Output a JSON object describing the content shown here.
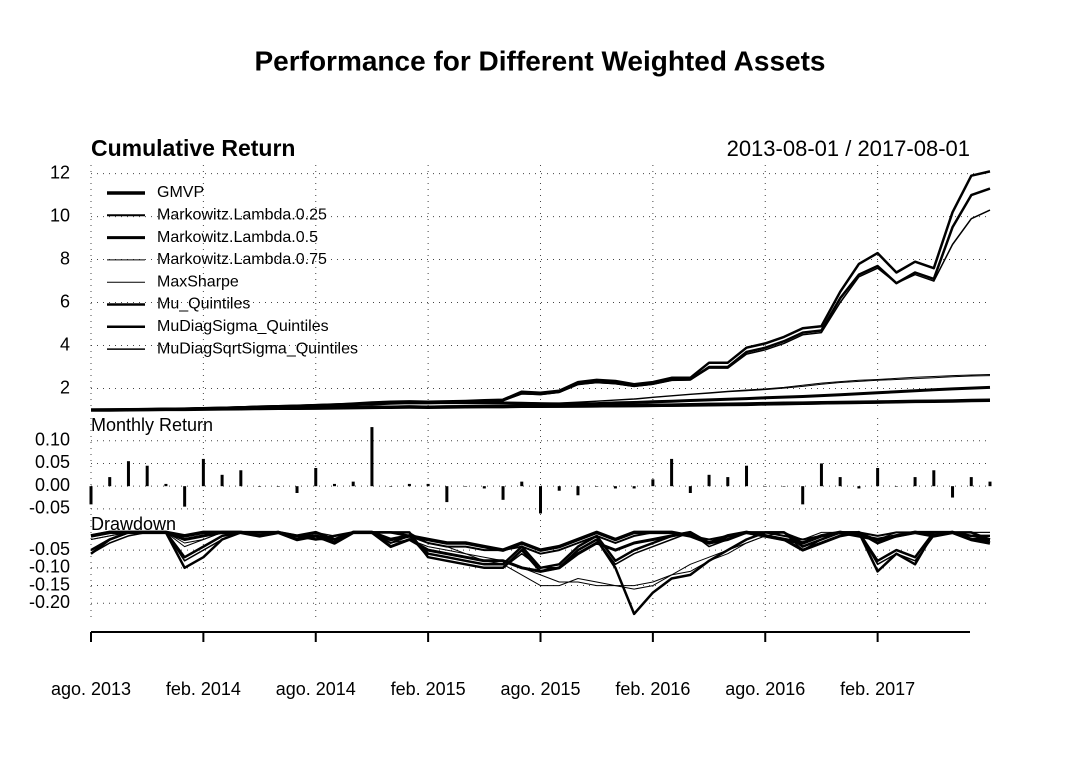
{
  "title": "Performance for Different Weighted Assets",
  "chart_data": [
    {
      "type": "line",
      "title": "Cumulative Return",
      "subtitle": "2013-08-01 / 2017-08-01",
      "x": [
        "2013-08",
        "2013-09",
        "2013-10",
        "2013-11",
        "2013-12",
        "2014-01",
        "2014-02",
        "2014-03",
        "2014-04",
        "2014-05",
        "2014-06",
        "2014-07",
        "2014-08",
        "2014-09",
        "2014-10",
        "2014-11",
        "2014-12",
        "2015-01",
        "2015-02",
        "2015-03",
        "2015-04",
        "2015-05",
        "2015-06",
        "2015-07",
        "2015-08",
        "2015-09",
        "2015-10",
        "2015-11",
        "2015-12",
        "2016-01",
        "2016-02",
        "2016-03",
        "2016-04",
        "2016-05",
        "2016-06",
        "2016-07",
        "2016-08",
        "2016-09",
        "2016-10",
        "2016-11",
        "2016-12",
        "2017-01",
        "2017-02",
        "2017-03",
        "2017-04",
        "2017-05",
        "2017-06",
        "2017-07",
        "2017-08"
      ],
      "ylim": [
        1,
        12.4
      ],
      "yticks": [
        2,
        4,
        6,
        8,
        10,
        12
      ],
      "grid": true,
      "legend": "top-left",
      "series": [
        {
          "name": "GMVP",
          "color": "#000000",
          "values": [
            1.0,
            1.0,
            1.01,
            1.02,
            1.03,
            1.03,
            1.04,
            1.05,
            1.06,
            1.07,
            1.08,
            1.08,
            1.09,
            1.1,
            1.11,
            1.12,
            1.13,
            1.14,
            1.13,
            1.14,
            1.15,
            1.16,
            1.16,
            1.17,
            1.17,
            1.18,
            1.19,
            1.2,
            1.2,
            1.21,
            1.22,
            1.23,
            1.24,
            1.26,
            1.27,
            1.28,
            1.3,
            1.31,
            1.32,
            1.34,
            1.35,
            1.36,
            1.37,
            1.38,
            1.4,
            1.41,
            1.42,
            1.44,
            1.45
          ]
        },
        {
          "name": "Markowitz.Lambda.0.25",
          "color": "#000000",
          "values": [
            1.0,
            1.0,
            1.01,
            1.02,
            1.03,
            1.04,
            1.05,
            1.06,
            1.07,
            1.08,
            1.09,
            1.1,
            1.11,
            1.12,
            1.13,
            1.15,
            1.16,
            1.17,
            1.16,
            1.17,
            1.18,
            1.18,
            1.17,
            1.17,
            1.16,
            1.15,
            1.15,
            1.16,
            1.17,
            1.17,
            1.18,
            1.19,
            1.2,
            1.21,
            1.22,
            1.23,
            1.25,
            1.26,
            1.28,
            1.3,
            1.31,
            1.32,
            1.34,
            1.36,
            1.38,
            1.4,
            1.42,
            1.44,
            1.46
          ]
        },
        {
          "name": "Markowitz.Lambda.0.5",
          "color": "#000000",
          "values": [
            1.0,
            1.01,
            1.02,
            1.03,
            1.04,
            1.05,
            1.07,
            1.09,
            1.11,
            1.13,
            1.15,
            1.17,
            1.19,
            1.22,
            1.25,
            1.28,
            1.31,
            1.34,
            1.33,
            1.35,
            1.34,
            1.33,
            1.32,
            1.3,
            1.28,
            1.27,
            1.28,
            1.3,
            1.33,
            1.35,
            1.38,
            1.41,
            1.44,
            1.47,
            1.5,
            1.53,
            1.57,
            1.6,
            1.63,
            1.67,
            1.71,
            1.76,
            1.8,
            1.85,
            1.9,
            1.94,
            1.98,
            2.02,
            2.05
          ]
        },
        {
          "name": "Markowitz.Lambda.0.75",
          "color": "#000000",
          "values": [
            1.0,
            1.01,
            1.03,
            1.04,
            1.06,
            1.08,
            1.1,
            1.12,
            1.15,
            1.18,
            1.2,
            1.22,
            1.25,
            1.28,
            1.3,
            1.33,
            1.35,
            1.36,
            1.35,
            1.37,
            1.38,
            1.37,
            1.36,
            1.35,
            1.33,
            1.32,
            1.35,
            1.4,
            1.45,
            1.5,
            1.58,
            1.65,
            1.72,
            1.78,
            1.85,
            1.9,
            1.95,
            2.02,
            2.1,
            2.2,
            2.28,
            2.33,
            2.38,
            2.42,
            2.46,
            2.5,
            2.55,
            2.58,
            2.6
          ]
        },
        {
          "name": "MaxSharpe",
          "color": "#000000",
          "values": [
            1.0,
            1.01,
            1.03,
            1.05,
            1.07,
            1.09,
            1.11,
            1.13,
            1.16,
            1.19,
            1.21,
            1.23,
            1.26,
            1.29,
            1.31,
            1.34,
            1.36,
            1.37,
            1.36,
            1.38,
            1.39,
            1.38,
            1.37,
            1.36,
            1.34,
            1.33,
            1.37,
            1.42,
            1.47,
            1.52,
            1.6,
            1.67,
            1.74,
            1.8,
            1.87,
            1.93,
            1.98,
            2.05,
            2.15,
            2.25,
            2.32,
            2.38,
            2.42,
            2.47,
            2.52,
            2.56,
            2.6,
            2.63,
            2.65
          ]
        },
        {
          "name": "Mu_Quintiles",
          "color": "#000000",
          "values": [
            1.0,
            1.0,
            1.02,
            1.03,
            1.05,
            1.06,
            1.08,
            1.1,
            1.12,
            1.15,
            1.17,
            1.2,
            1.22,
            1.25,
            1.3,
            1.35,
            1.38,
            1.4,
            1.38,
            1.4,
            1.42,
            1.45,
            1.48,
            1.85,
            1.8,
            1.9,
            2.3,
            2.4,
            2.35,
            2.2,
            2.3,
            2.5,
            2.5,
            3.2,
            3.2,
            3.9,
            4.1,
            4.4,
            4.8,
            4.9,
            6.5,
            7.8,
            8.3,
            7.4,
            7.9,
            7.6,
            10.2,
            11.9,
            12.1
          ]
        },
        {
          "name": "MuDiagSigma_Quintiles",
          "color": "#000000",
          "values": [
            1.0,
            1.0,
            1.02,
            1.03,
            1.04,
            1.05,
            1.07,
            1.09,
            1.11,
            1.14,
            1.16,
            1.18,
            1.2,
            1.23,
            1.28,
            1.32,
            1.35,
            1.37,
            1.35,
            1.37,
            1.39,
            1.42,
            1.45,
            1.78,
            1.74,
            1.84,
            2.22,
            2.3,
            2.25,
            2.12,
            2.22,
            2.4,
            2.42,
            3.0,
            3.0,
            3.7,
            3.9,
            4.2,
            4.6,
            4.7,
            6.2,
            7.3,
            7.7,
            6.9,
            7.4,
            7.1,
            9.5,
            11.0,
            11.3
          ]
        },
        {
          "name": "MuDiagSqrtSigma_Quintiles",
          "color": "#000000",
          "values": [
            1.0,
            1.0,
            1.02,
            1.03,
            1.04,
            1.05,
            1.06,
            1.08,
            1.1,
            1.13,
            1.15,
            1.17,
            1.19,
            1.22,
            1.27,
            1.31,
            1.34,
            1.36,
            1.34,
            1.36,
            1.38,
            1.41,
            1.44,
            1.75,
            1.72,
            1.82,
            2.18,
            2.28,
            2.22,
            2.1,
            2.2,
            2.38,
            2.4,
            2.95,
            2.95,
            3.6,
            3.8,
            4.1,
            4.5,
            4.6,
            6.0,
            7.2,
            7.6,
            6.9,
            7.3,
            7.0,
            8.7,
            9.9,
            10.3
          ]
        }
      ]
    },
    {
      "type": "bar",
      "title": "Monthly Return",
      "color": "#000000",
      "ylim": [
        -0.07,
        0.15
      ],
      "grid": true,
      "yticks": [
        {
          "value": 0.1,
          "label": "0.10"
        },
        {
          "value": 0.05,
          "label": "0.05"
        },
        {
          "value": 0,
          "label": "0.00"
        },
        {
          "value": -0.05,
          "label": "-0.05"
        }
      ],
      "values": [
        -0.04,
        0.02,
        0.055,
        0.045,
        0.005,
        -0.045,
        0.06,
        0.025,
        0.035,
        0.0,
        0.0,
        -0.015,
        0.04,
        0.005,
        0.01,
        0.13,
        0.0,
        0.005,
        0.005,
        -0.035,
        0.0,
        -0.005,
        -0.03,
        0.01,
        -0.06,
        -0.01,
        -0.02,
        0.0,
        -0.005,
        -0.005,
        0.015,
        0.06,
        -0.015,
        0.025,
        0.02,
        0.045,
        0.0,
        0.0,
        -0.04,
        0.05,
        0.02,
        -0.005,
        0.04,
        0.0,
        0.02,
        0.035,
        -0.025,
        0.02,
        0.01
      ]
    },
    {
      "type": "line",
      "title": "Drawdown",
      "ylim": [
        -0.25,
        0.035
      ],
      "grid": true,
      "yticks": [
        {
          "value": -0.05,
          "label": "-0.05"
        },
        {
          "value": -0.1,
          "label": "-0.10"
        },
        {
          "value": -0.15,
          "label": "-0.15"
        },
        {
          "value": -0.2,
          "label": "-0.20"
        }
      ],
      "xticks": [
        {
          "value": "2013-08",
          "label": "ago. 2013"
        },
        {
          "value": "2014-02",
          "label": "feb. 2014"
        },
        {
          "value": "2014-08",
          "label": "ago. 2014"
        },
        {
          "value": "2015-02",
          "label": "feb. 2015"
        },
        {
          "value": "2015-08",
          "label": "ago. 2015"
        },
        {
          "value": "2016-02",
          "label": "feb. 2016"
        },
        {
          "value": "2016-08",
          "label": "ago. 2016"
        },
        {
          "value": "2017-02",
          "label": "feb. 2017"
        }
      ],
      "series": [
        {
          "color": "#000000",
          "values": [
            -0.01,
            0,
            0,
            0,
            0,
            -0.01,
            0,
            0,
            0,
            -0.01,
            0,
            -0.02,
            -0.01,
            -0.03,
            0,
            0,
            -0.02,
            -0.01,
            -0.02,
            -0.03,
            -0.03,
            -0.04,
            -0.05,
            -0.03,
            -0.05,
            -0.04,
            -0.02,
            0,
            -0.02,
            0,
            0,
            0,
            -0.01,
            -0.03,
            -0.01,
            0,
            -0.01,
            -0.02,
            -0.03,
            -0.01,
            0,
            -0.01,
            -0.02,
            -0.01,
            0,
            -0.01,
            0,
            -0.02,
            -0.03
          ]
        },
        {
          "color": "#000000",
          "values": [
            -0.01,
            0,
            0,
            0,
            0,
            -0.02,
            -0.01,
            0,
            0,
            0,
            0,
            -0.02,
            -0.01,
            -0.02,
            0,
            0,
            -0.03,
            -0.01,
            -0.03,
            -0.04,
            -0.04,
            -0.05,
            -0.05,
            -0.04,
            -0.06,
            -0.05,
            -0.03,
            -0.01,
            -0.03,
            -0.01,
            0,
            0,
            -0.01,
            -0.02,
            -0.01,
            0,
            0,
            -0.01,
            -0.02,
            -0.01,
            0,
            0,
            -0.01,
            0,
            0,
            0,
            0,
            -0.01,
            -0.02
          ]
        },
        {
          "color": "#000000",
          "values": [
            -0.01,
            0,
            0,
            0,
            0,
            -0.02,
            -0.01,
            0,
            0,
            0,
            0,
            -0.01,
            0,
            -0.02,
            0,
            0,
            -0.04,
            -0.02,
            -0.05,
            -0.06,
            -0.07,
            -0.08,
            -0.08,
            -0.1,
            -0.11,
            -0.1,
            -0.06,
            -0.03,
            -0.05,
            -0.03,
            -0.02,
            -0.01,
            0,
            -0.03,
            -0.02,
            0,
            -0.01,
            -0.02,
            -0.05,
            -0.03,
            -0.01,
            0,
            -0.03,
            -0.01,
            0,
            0,
            0,
            -0.02,
            -0.02
          ]
        },
        {
          "color": "#000000",
          "values": [
            -0.02,
            -0.01,
            0,
            0,
            0,
            -0.03,
            -0.02,
            0,
            0,
            0,
            0,
            -0.01,
            0,
            -0.01,
            0,
            0,
            -0.03,
            -0.02,
            -0.04,
            -0.05,
            -0.06,
            -0.07,
            -0.08,
            -0.1,
            -0.12,
            -0.14,
            -0.14,
            -0.15,
            -0.15,
            -0.15,
            -0.14,
            -0.12,
            -0.09,
            -0.07,
            -0.05,
            -0.03,
            -0.01,
            0,
            -0.03,
            -0.01,
            0,
            0,
            -0.02,
            -0.01,
            0,
            0,
            0,
            0,
            0
          ]
        },
        {
          "color": "#000000",
          "values": [
            -0.02,
            -0.01,
            0,
            0,
            0,
            -0.04,
            -0.02,
            0,
            0,
            0,
            0,
            -0.01,
            0,
            -0.02,
            0,
            0,
            0,
            0,
            -0.03,
            -0.04,
            -0.06,
            -0.08,
            -0.09,
            -0.12,
            -0.15,
            -0.15,
            -0.13,
            -0.14,
            -0.15,
            -0.16,
            -0.15,
            -0.12,
            -0.11,
            -0.08,
            -0.06,
            -0.03,
            -0.01,
            0,
            -0.02,
            0,
            0,
            0,
            -0.02,
            0,
            0,
            0,
            0,
            0,
            0
          ]
        },
        {
          "color": "#000000",
          "values": [
            -0.06,
            -0.02,
            0,
            0,
            0,
            -0.1,
            -0.07,
            -0.02,
            0,
            0,
            0,
            -0.01,
            -0.01,
            -0.02,
            0,
            0,
            0,
            0,
            -0.07,
            -0.08,
            -0.09,
            -0.1,
            -0.1,
            -0.05,
            -0.11,
            -0.1,
            -0.05,
            -0.02,
            -0.1,
            -0.23,
            -0.17,
            -0.13,
            -0.12,
            -0.08,
            -0.05,
            -0.02,
            0,
            0,
            -0.04,
            -0.02,
            0,
            0,
            -0.11,
            -0.06,
            -0.09,
            0,
            0,
            0,
            -0.02
          ]
        },
        {
          "color": "#000000",
          "values": [
            -0.05,
            -0.02,
            0,
            0,
            0,
            -0.07,
            -0.04,
            -0.01,
            0,
            0,
            0,
            -0.01,
            -0.02,
            -0.01,
            0,
            0,
            0,
            -0.01,
            -0.06,
            -0.07,
            -0.08,
            -0.09,
            -0.09,
            -0.04,
            -0.1,
            -0.09,
            -0.04,
            -0.01,
            -0.08,
            -0.05,
            -0.03,
            -0.01,
            0,
            -0.03,
            -0.01,
            0,
            0,
            0,
            -0.03,
            -0.01,
            0,
            0,
            -0.08,
            -0.05,
            -0.07,
            0,
            0,
            -0.01,
            -0.01
          ]
        },
        {
          "color": "#000000",
          "values": [
            -0.06,
            -0.03,
            -0.01,
            0,
            0,
            -0.08,
            -0.05,
            -0.02,
            0,
            0,
            0,
            -0.01,
            -0.02,
            -0.02,
            0,
            0,
            0,
            -0.01,
            -0.07,
            -0.08,
            -0.09,
            -0.1,
            -0.1,
            -0.06,
            -0.1,
            -0.1,
            -0.05,
            -0.02,
            -0.09,
            -0.06,
            -0.04,
            -0.02,
            0,
            -0.04,
            -0.02,
            0,
            0,
            0,
            -0.05,
            -0.02,
            0,
            0,
            -0.09,
            -0.06,
            -0.08,
            -0.01,
            0,
            -0.01,
            -0.02
          ]
        }
      ]
    }
  ]
}
